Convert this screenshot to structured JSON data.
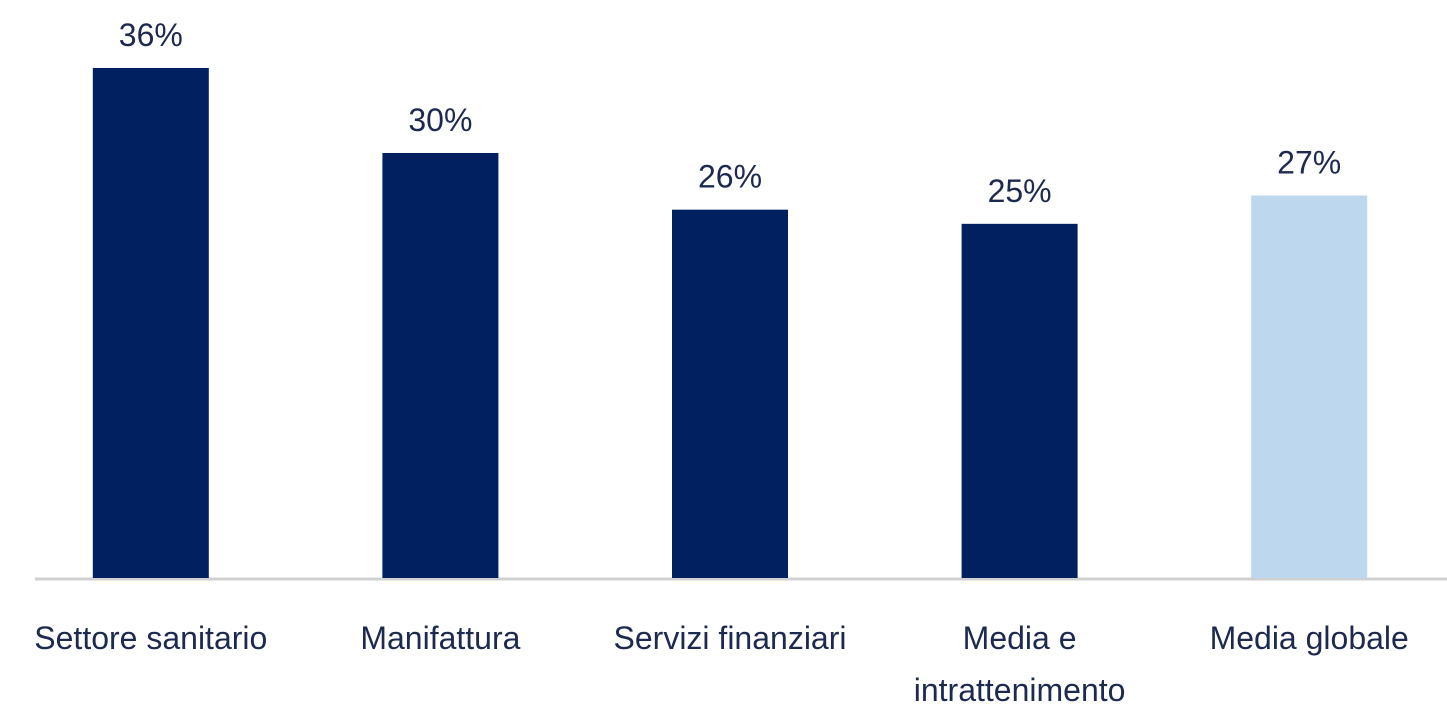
{
  "chart_data": {
    "type": "bar",
    "categories": [
      "Settore sanitario",
      "Manifattura",
      "Servizi finanziari",
      "Media e intrattenimento",
      "Media globale"
    ],
    "values": [
      36,
      30,
      26,
      25,
      27
    ],
    "value_labels": [
      "36%",
      "30%",
      "26%",
      "25%",
      "27%"
    ],
    "colors": [
      "#002060",
      "#002060",
      "#002060",
      "#002060",
      "#bdd7ee"
    ]
  }
}
